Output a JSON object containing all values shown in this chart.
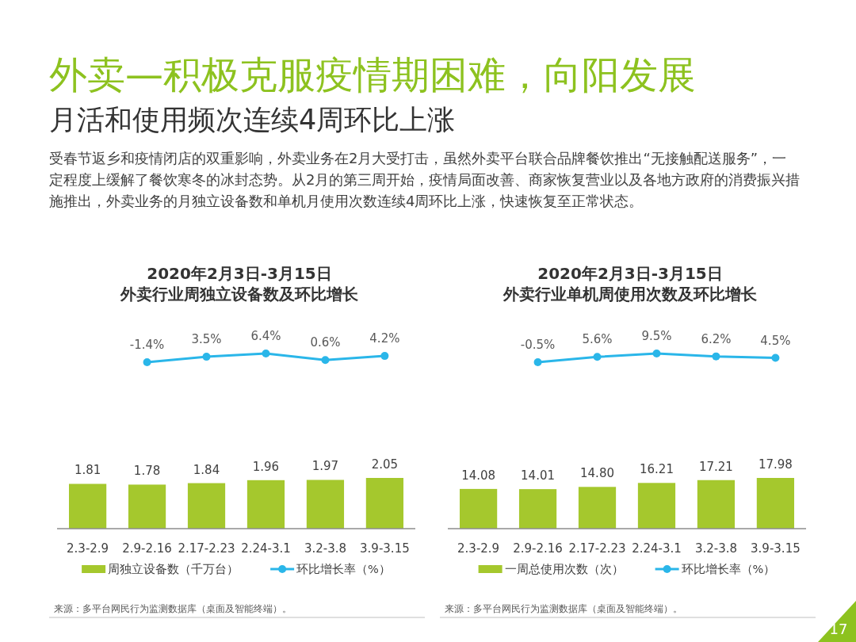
{
  "chart_data": [
    {
      "type": "other",
      "title": "外卖—积极克服疫情期困难，向阳发展",
      "subtitle": "月活和使用频次连续4周环比上涨",
      "annotations": [
        "受春节返乡和疫情闭店的双重影响，外卖业务在2月大受打击，虽然外卖平台联合品牌餐饮推出“无接触配送服务”，一定程度上缓解了餐饮寒冬的冰封态势。从2月的第三周开始，疫情局面改善、商家恢复营业以及各地方政府的消费振兴措施推出，外卖业务的月独立设备数和单机月使用次数连续4周环比上涨，快速恢复至正常状态。",
        "17"
      ]
    },
    {
      "type": "line",
      "title": "2020年2月3日-3月15日",
      "subtitle": "外卖行业周独立设备数及环比增长",
      "categories": [
        null,
        null,
        null,
        null,
        null,
        null
      ],
      "series": [
        {
          "name": "环比增长率（%）",
          "color": "#2ab6e9",
          "values": [
            null,
            -1.4,
            3.5,
            6.4,
            0.6,
            4.2
          ],
          "value_labels": [
            null,
            "-1.4%",
            "3.5%",
            "6.4%",
            "0.6%",
            "4.2%"
          ]
        }
      ],
      "marker": "circle",
      "legend": "bottom"
    },
    {
      "type": "bar",
      "categories": [
        "2.3-2.9",
        "2.9-2.16",
        "2.17-2.23",
        "2.24-3.1",
        "3.2-3.8",
        "3.9-3.15"
      ],
      "series": [
        {
          "name": "周独立设备数（千万台）",
          "color": "#a5c82d",
          "values": [
            1.81,
            1.78,
            1.84,
            1.96,
            1.97,
            2.05
          ],
          "value_labels": [
            "1.81",
            "1.78",
            "1.84",
            "1.96",
            "1.97",
            "2.05"
          ]
        }
      ],
      "legend": "bottom",
      "annotations": [
        "来源：多平台网民行为监测数据库（桌面及智能终端）。"
      ]
    },
    {
      "type": "line",
      "title": "2020年2月3日-3月15日",
      "subtitle": "外卖行业单机周使用次数及环比增长",
      "categories": [
        null,
        null,
        null,
        null,
        null,
        null
      ],
      "series": [
        {
          "name": "环比增长率（%）",
          "color": "#2ab6e9",
          "values": [
            null,
            -0.5,
            5.6,
            9.5,
            6.2,
            4.5
          ],
          "value_labels": [
            null,
            "-0.5%",
            "5.6%",
            "9.5%",
            "6.2%",
            "4.5%"
          ]
        }
      ],
      "marker": "circle",
      "legend": "bottom"
    },
    {
      "type": "bar",
      "categories": [
        "2.3-2.9",
        "2.9-2.16",
        "2.17-2.23",
        "2.24-3.1",
        "3.2-3.8",
        "3.9-3.15"
      ],
      "series": [
        {
          "name": "一周总使用次数（次）",
          "color": "#a5c82d",
          "values": [
            14.08,
            14.01,
            14.8,
            16.21,
            17.21,
            17.98
          ],
          "value_labels": [
            "14.08",
            "14.01",
            "14.80",
            "16.21",
            "17.21",
            "17.98"
          ]
        }
      ],
      "legend": "bottom",
      "annotations": [
        "来源：多平台网民行为监测数据库（桌面及智能终端）。"
      ]
    }
  ]
}
